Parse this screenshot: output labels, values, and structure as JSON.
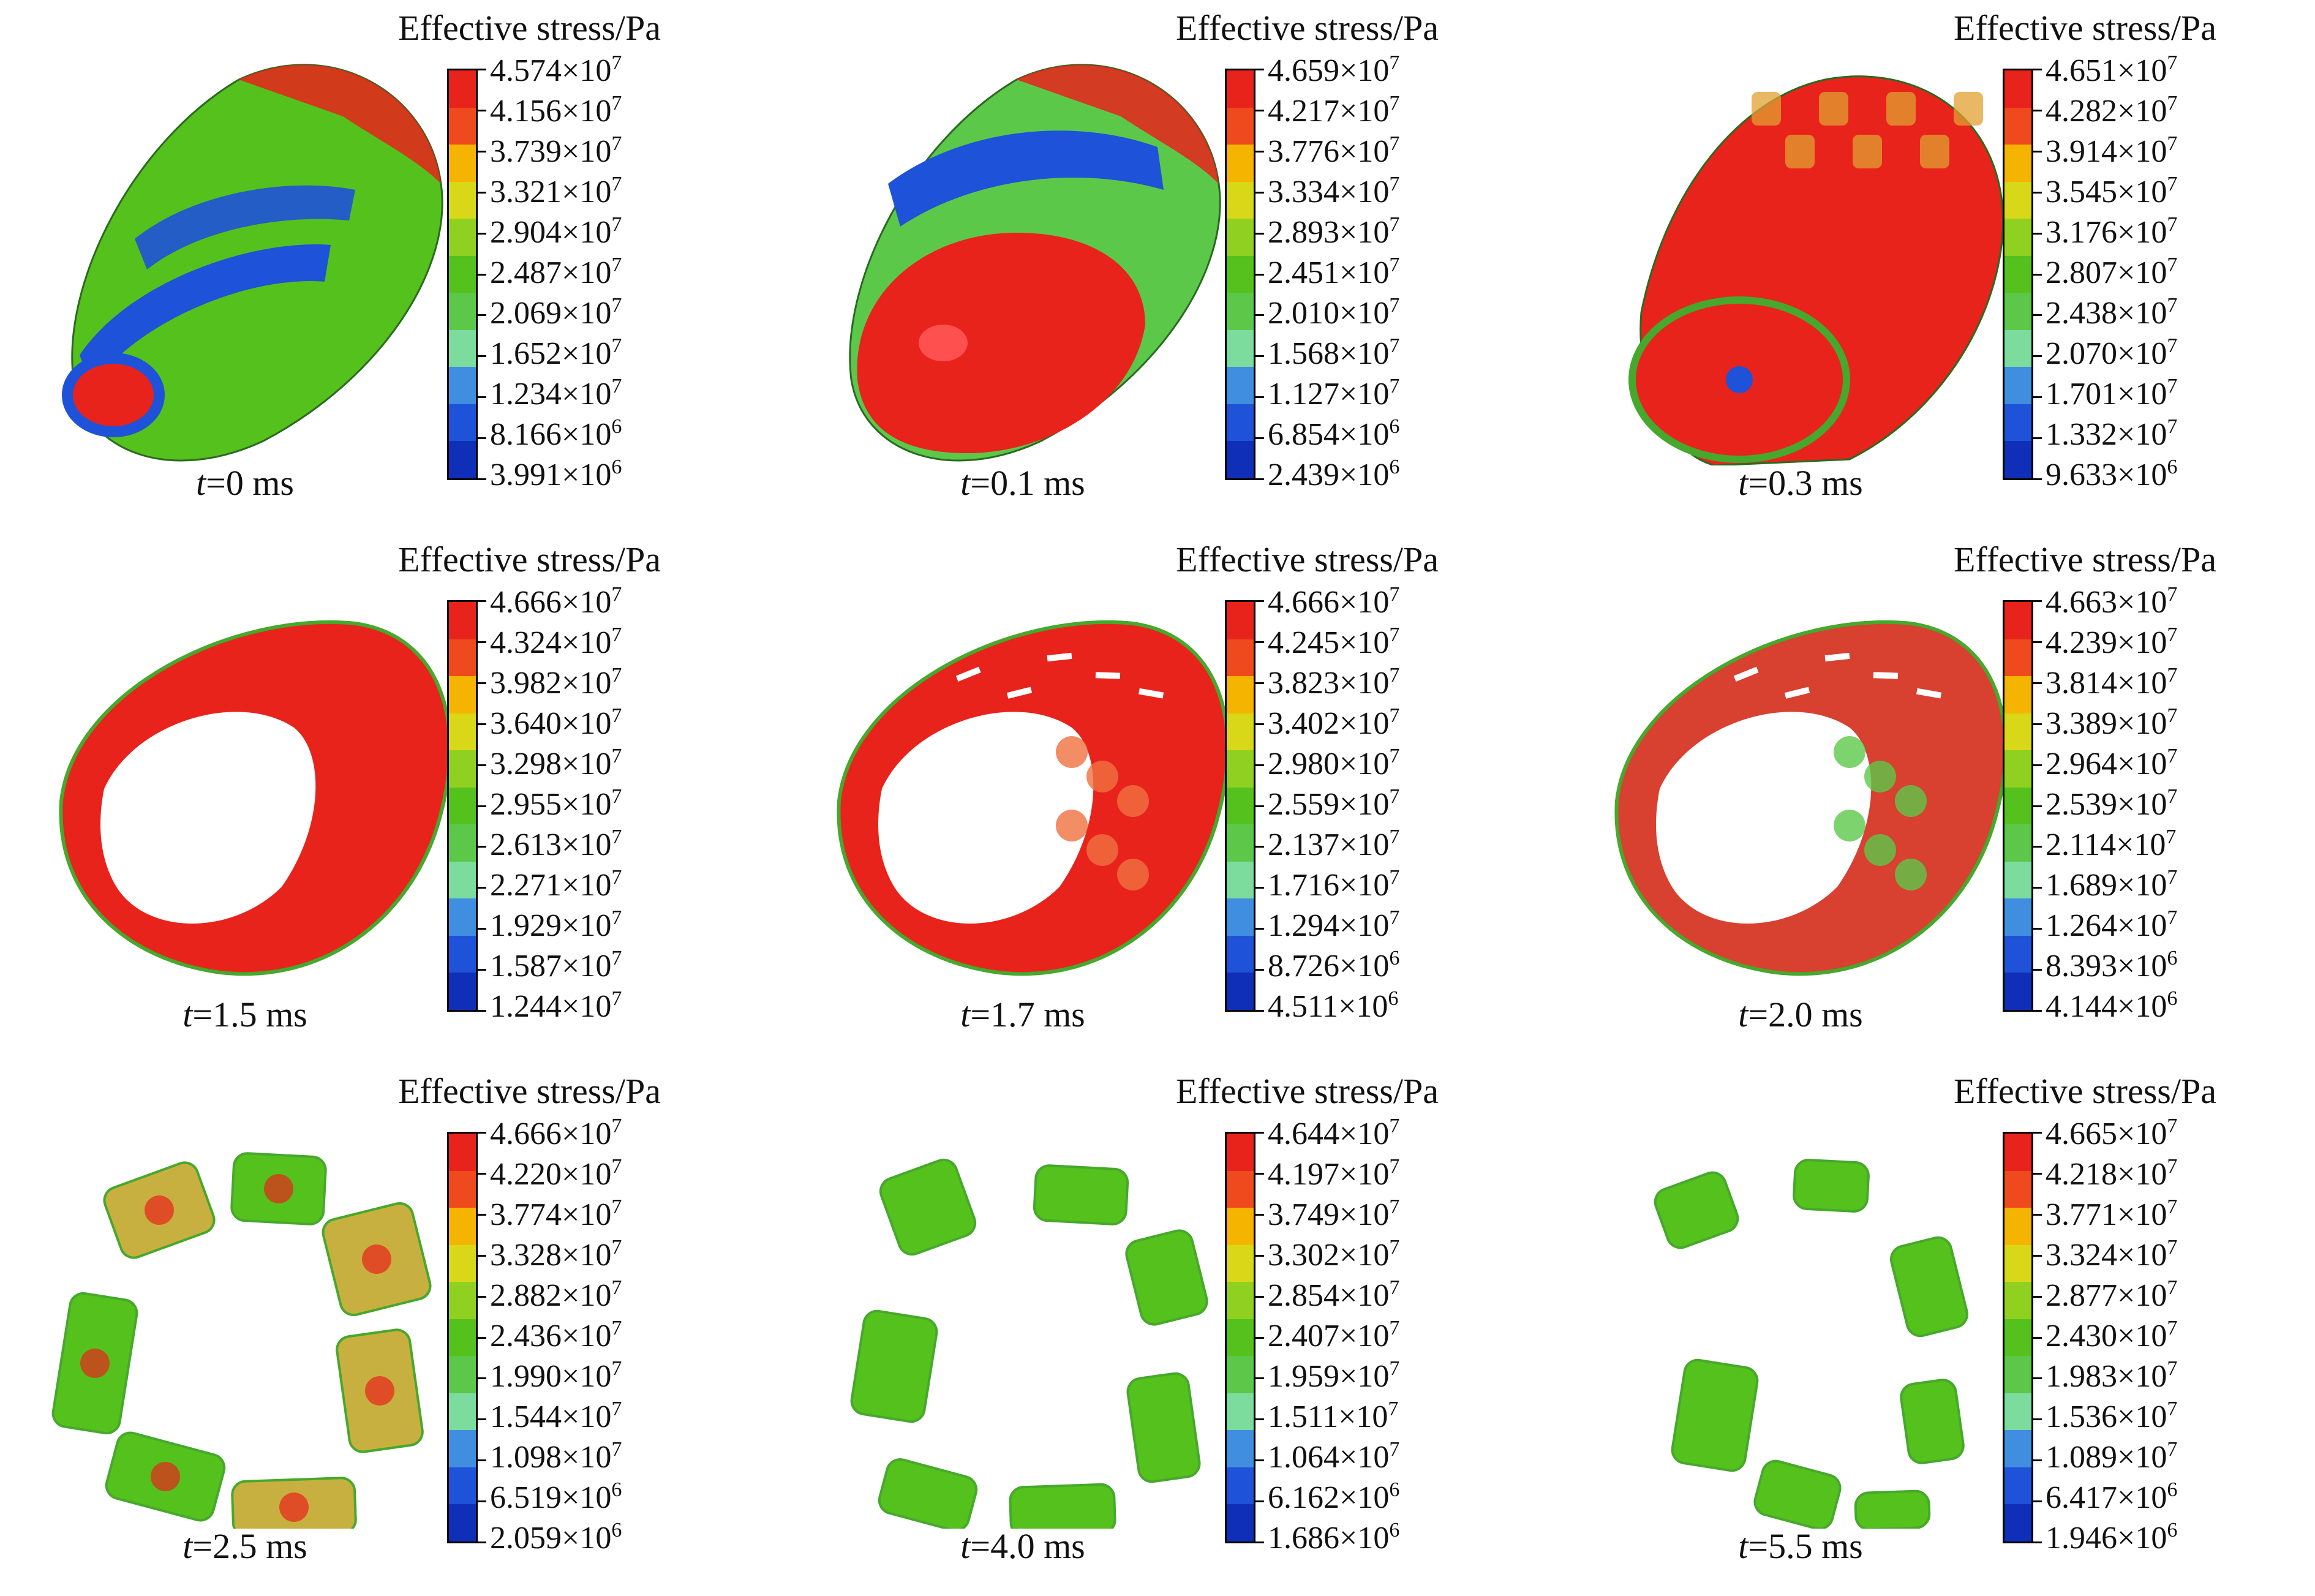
{
  "legend_title": "Effective stress/Pa",
  "colorscale": [
    "#e8231c",
    "#ee4a1e",
    "#f5b400",
    "#d8d818",
    "#8fd020",
    "#55c11c",
    "#5cc84a",
    "#7bdc9e",
    "#3f8ee0",
    "#1e52d8",
    "#102fb8"
  ],
  "panels": [
    {
      "caption_var": "t",
      "caption_value": "=0 ms",
      "shape": "cone-front",
      "labels": [
        [
          "4.574",
          "7"
        ],
        [
          "4.156",
          "7"
        ],
        [
          "3.739",
          "7"
        ],
        [
          "3.321",
          "7"
        ],
        [
          "2.904",
          "7"
        ],
        [
          "2.487",
          "7"
        ],
        [
          "2.069",
          "7"
        ],
        [
          "1.652",
          "7"
        ],
        [
          "1.234",
          "7"
        ],
        [
          "8.166",
          "6"
        ],
        [
          "3.991",
          "6"
        ]
      ]
    },
    {
      "caption_var": "t",
      "caption_value": "=0.1 ms",
      "shape": "cone-red-front",
      "labels": [
        [
          "4.659",
          "7"
        ],
        [
          "4.217",
          "7"
        ],
        [
          "3.776",
          "7"
        ],
        [
          "3.334",
          "7"
        ],
        [
          "2.893",
          "7"
        ],
        [
          "2.451",
          "7"
        ],
        [
          "2.010",
          "7"
        ],
        [
          "1.568",
          "7"
        ],
        [
          "1.127",
          "7"
        ],
        [
          "6.854",
          "6"
        ],
        [
          "2.439",
          "6"
        ]
      ]
    },
    {
      "caption_var": "t",
      "caption_value": "=0.3 ms",
      "shape": "cone-open",
      "labels": [
        [
          "4.651",
          "7"
        ],
        [
          "4.282",
          "7"
        ],
        [
          "3.914",
          "7"
        ],
        [
          "3.545",
          "7"
        ],
        [
          "3.176",
          "7"
        ],
        [
          "2.807",
          "7"
        ],
        [
          "2.438",
          "7"
        ],
        [
          "2.070",
          "7"
        ],
        [
          "1.701",
          "7"
        ],
        [
          "1.332",
          "7"
        ],
        [
          "9.633",
          "6"
        ]
      ]
    },
    {
      "caption_var": "t",
      "caption_value": "=1.5 ms",
      "shape": "ring-red",
      "labels": [
        [
          "4.666",
          "7"
        ],
        [
          "4.324",
          "7"
        ],
        [
          "3.982",
          "7"
        ],
        [
          "3.640",
          "7"
        ],
        [
          "3.298",
          "7"
        ],
        [
          "2.955",
          "7"
        ],
        [
          "2.613",
          "7"
        ],
        [
          "2.271",
          "7"
        ],
        [
          "1.929",
          "7"
        ],
        [
          "1.587",
          "7"
        ],
        [
          "1.244",
          "7"
        ]
      ]
    },
    {
      "caption_var": "t",
      "caption_value": "=1.7 ms",
      "shape": "ring-red-cracked",
      "labels": [
        [
          "4.666",
          "7"
        ],
        [
          "4.245",
          "7"
        ],
        [
          "3.823",
          "7"
        ],
        [
          "3.402",
          "7"
        ],
        [
          "2.980",
          "7"
        ],
        [
          "2.559",
          "7"
        ],
        [
          "2.137",
          "7"
        ],
        [
          "1.716",
          "7"
        ],
        [
          "1.294",
          "7"
        ],
        [
          "8.726",
          "6"
        ],
        [
          "4.511",
          "6"
        ]
      ]
    },
    {
      "caption_var": "t",
      "caption_value": "=2.0 ms",
      "shape": "ring-mixed",
      "labels": [
        [
          "4.663",
          "7"
        ],
        [
          "4.239",
          "7"
        ],
        [
          "3.814",
          "7"
        ],
        [
          "3.389",
          "7"
        ],
        [
          "2.964",
          "7"
        ],
        [
          "2.539",
          "7"
        ],
        [
          "2.114",
          "7"
        ],
        [
          "1.689",
          "7"
        ],
        [
          "1.264",
          "7"
        ],
        [
          "8.393",
          "6"
        ],
        [
          "4.144",
          "6"
        ]
      ]
    },
    {
      "caption_var": "t",
      "caption_value": "=2.5 ms",
      "shape": "frag-1",
      "labels": [
        [
          "4.666",
          "7"
        ],
        [
          "4.220",
          "7"
        ],
        [
          "3.774",
          "7"
        ],
        [
          "3.328",
          "7"
        ],
        [
          "2.882",
          "7"
        ],
        [
          "2.436",
          "7"
        ],
        [
          "1.990",
          "7"
        ],
        [
          "1.544",
          "7"
        ],
        [
          "1.098",
          "7"
        ],
        [
          "6.519",
          "6"
        ],
        [
          "2.059",
          "6"
        ]
      ]
    },
    {
      "caption_var": "t",
      "caption_value": "=4.0 ms",
      "shape": "frag-2",
      "labels": [
        [
          "4.644",
          "7"
        ],
        [
          "4.197",
          "7"
        ],
        [
          "3.749",
          "7"
        ],
        [
          "3.302",
          "7"
        ],
        [
          "2.854",
          "7"
        ],
        [
          "2.407",
          "7"
        ],
        [
          "1.959",
          "7"
        ],
        [
          "1.511",
          "7"
        ],
        [
          "1.064",
          "7"
        ],
        [
          "6.162",
          "6"
        ],
        [
          "1.686",
          "6"
        ]
      ]
    },
    {
      "caption_var": "t",
      "caption_value": "=5.5 ms",
      "shape": "frag-3",
      "labels": [
        [
          "4.665",
          "7"
        ],
        [
          "4.218",
          "7"
        ],
        [
          "3.771",
          "7"
        ],
        [
          "3.324",
          "7"
        ],
        [
          "2.877",
          "7"
        ],
        [
          "2.430",
          "7"
        ],
        [
          "1.983",
          "7"
        ],
        [
          "1.536",
          "7"
        ],
        [
          "1.089",
          "7"
        ],
        [
          "6.417",
          "6"
        ],
        [
          "1.946",
          "6"
        ]
      ]
    }
  ]
}
